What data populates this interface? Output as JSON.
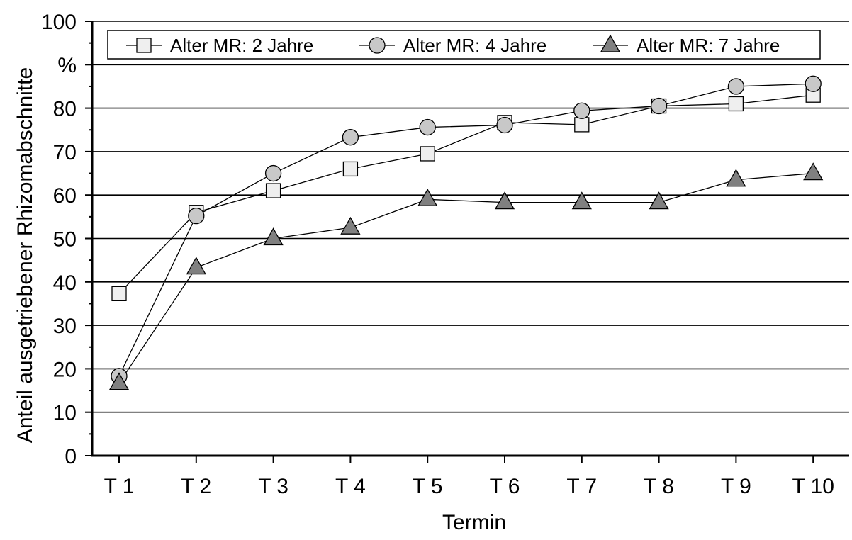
{
  "chart_data": {
    "type": "line",
    "title": "",
    "xlabel": "Termin",
    "ylabel": "Anteil ausgetriebener Rhizomabschnitte",
    "yunit": "%",
    "categories": [
      "T 1",
      "T 2",
      "T 3",
      "T 4",
      "T 5",
      "T 6",
      "T 7",
      "T 8",
      "T 9",
      "T 10"
    ],
    "ylim": [
      0,
      100
    ],
    "yticks": [
      0,
      10,
      20,
      30,
      40,
      50,
      60,
      70,
      80,
      100
    ],
    "grid": "horizontal",
    "legend_position": "top",
    "series": [
      {
        "name": "Alter MR: 2 Jahre",
        "marker": "square",
        "fill": "#efefef",
        "values": [
          37.3,
          56.0,
          61.0,
          66.0,
          69.5,
          76.7,
          76.2,
          80.5,
          81.0,
          83.0
        ]
      },
      {
        "name": "Alter MR: 4 Jahre",
        "marker": "circle",
        "fill": "#c8c8c8",
        "values": [
          18.3,
          55.2,
          65.0,
          73.3,
          75.6,
          76.1,
          79.4,
          80.5,
          85.0,
          85.6
        ]
      },
      {
        "name": "Alter MR: 7 Jahre",
        "marker": "triangle",
        "fill": "#808080",
        "values": [
          16.7,
          43.3,
          50.0,
          52.5,
          59.0,
          58.3,
          58.3,
          58.3,
          63.5,
          65.0
        ]
      }
    ]
  }
}
